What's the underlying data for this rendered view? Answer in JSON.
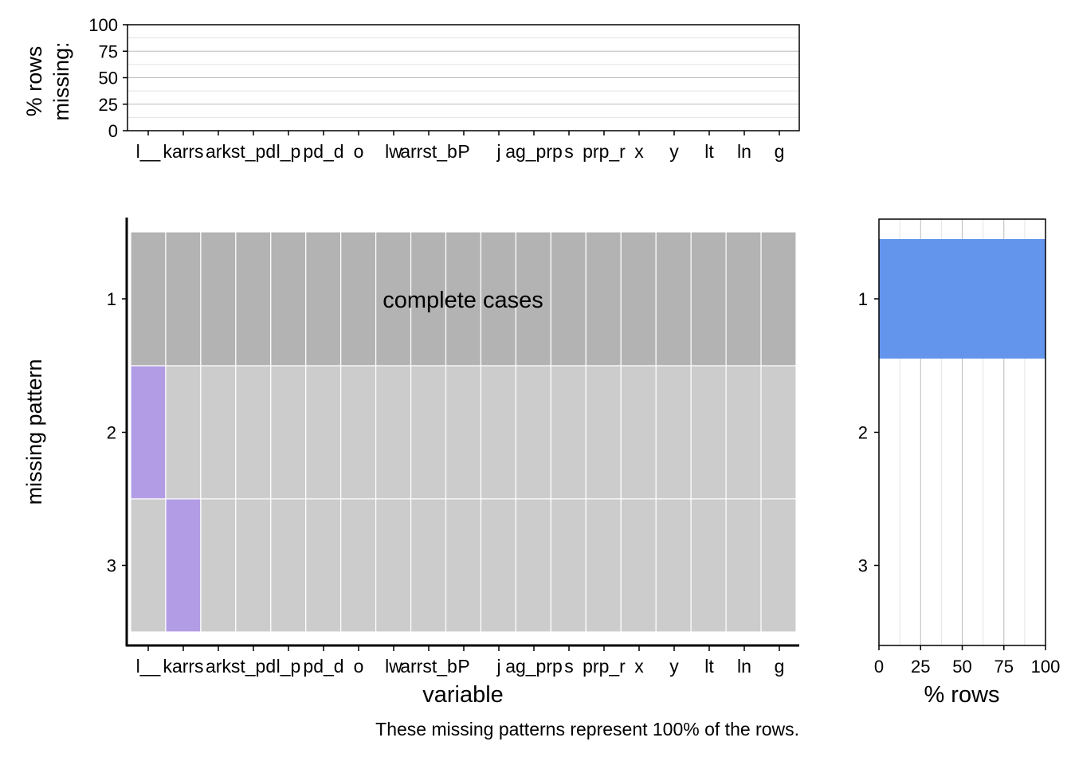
{
  "chart_data": [
    {
      "type": "bar",
      "title": "",
      "ylabel": "% rows missing:",
      "xlabel": "",
      "ylim": [
        0,
        100
      ],
      "yticks": [
        0,
        25,
        50,
        75,
        100
      ],
      "categories": [
        "l__",
        "karrs",
        "ark",
        "st_pd",
        "l_p",
        "pd_d",
        "o",
        "lw",
        "arrst_b",
        "P",
        "j",
        "ag_prp",
        "s",
        "prp_r",
        "x",
        "y",
        "lt",
        "ln",
        "g"
      ],
      "values": [
        0,
        0,
        0,
        0,
        0,
        0,
        0,
        0,
        0,
        0,
        0,
        0,
        0,
        0,
        0,
        0,
        0,
        0,
        0
      ]
    },
    {
      "type": "heatmap",
      "xlabel": "variable",
      "ylabel": "missing pattern",
      "rows": [
        "1",
        "2",
        "3"
      ],
      "missing_cells": [
        [
          2,
          0
        ],
        [
          3,
          1
        ]
      ],
      "annotation": "complete cases",
      "colors": {
        "complete": "#b3b3b3",
        "observed": "#cccccc",
        "missing": "#b39ce6"
      }
    },
    {
      "type": "bar",
      "orientation": "horizontal",
      "xlabel": "% rows",
      "xlim": [
        0,
        100
      ],
      "xticks": [
        0,
        25,
        50,
        75,
        100
      ],
      "categories": [
        "1",
        "2",
        "3"
      ],
      "values": [
        100,
        0,
        0
      ],
      "color": "#6495ed"
    }
  ],
  "caption": "These missing patterns represent 100% of the rows."
}
